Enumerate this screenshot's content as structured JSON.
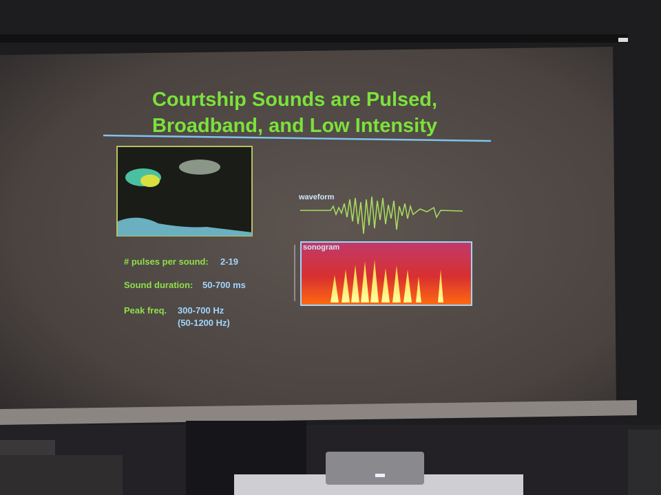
{
  "slide": {
    "title_lines": [
      "Courtship Sounds are Pulsed,",
      "Broadband, and Low Intensity"
    ],
    "figure_labels": {
      "waveform": "waveform",
      "sonogram": "sonogram"
    },
    "facts": [
      {
        "label": "# pulses per sound:",
        "values": [
          "2-19"
        ]
      },
      {
        "label": "Sound duration:",
        "values": [
          "50-700 ms"
        ]
      },
      {
        "label": "Peak freq.",
        "values": [
          "300-700 Hz",
          "(50-1200 Hz)"
        ]
      }
    ]
  }
}
